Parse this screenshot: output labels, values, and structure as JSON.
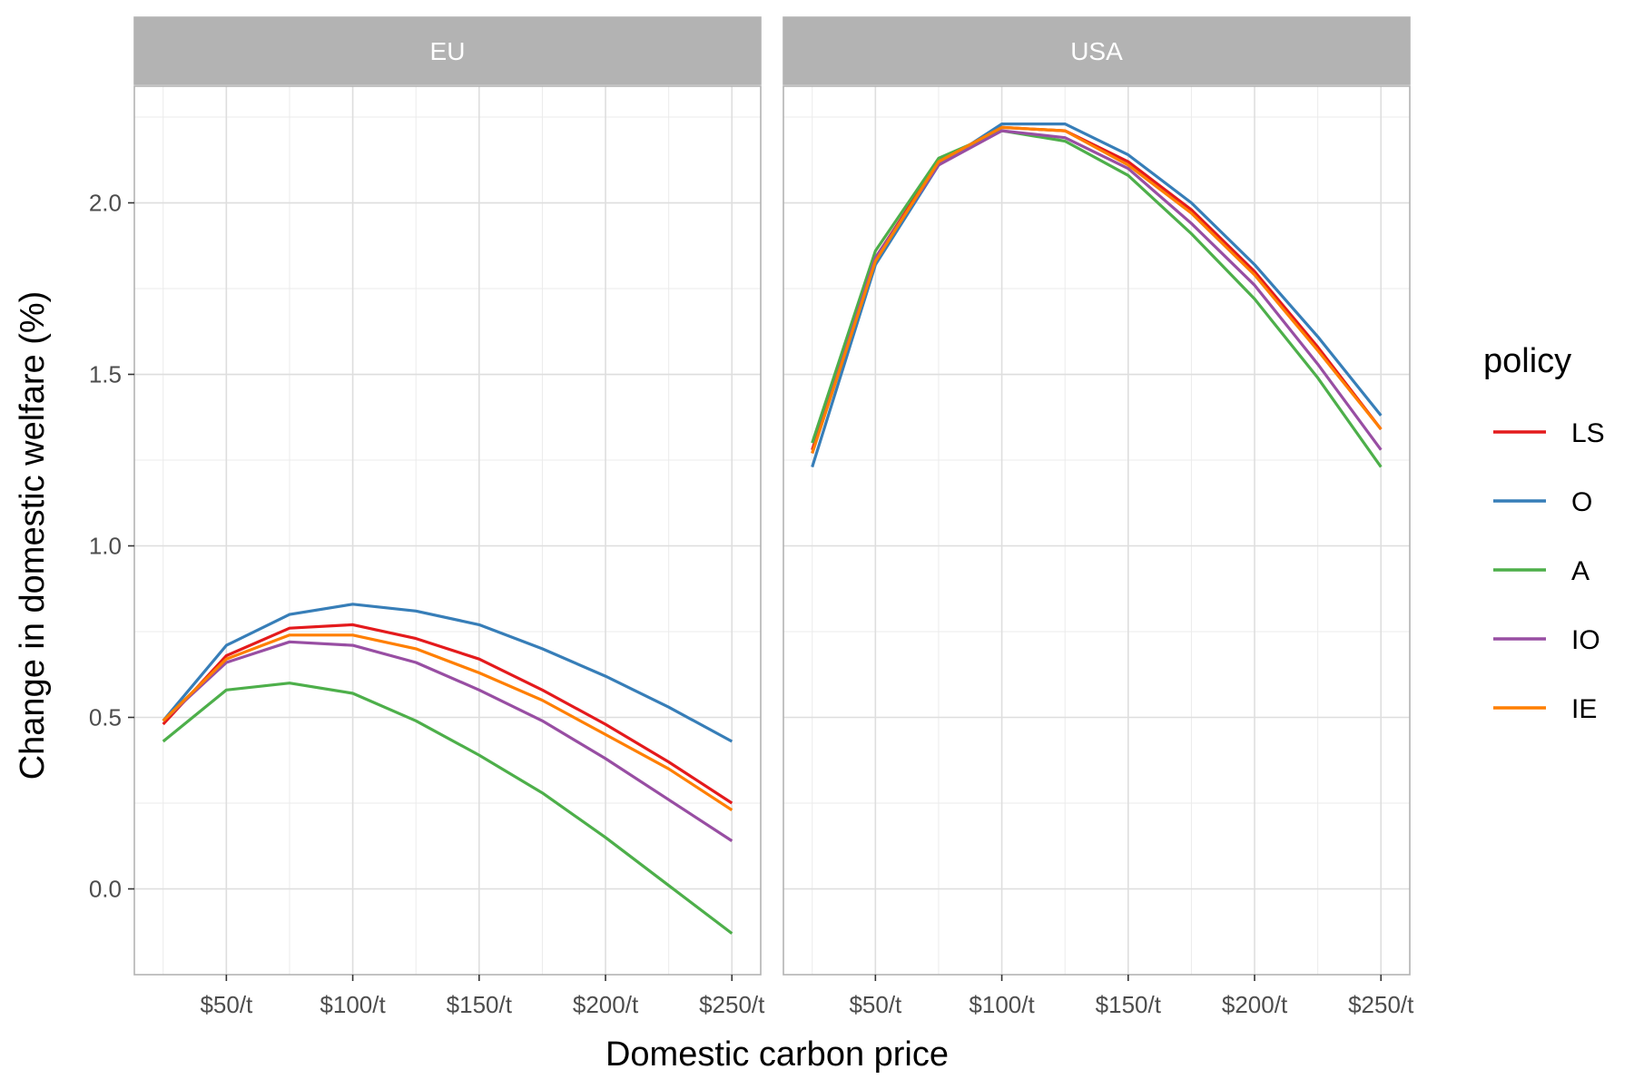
{
  "chart_data": {
    "type": "line",
    "xlabel": "Domestic carbon price",
    "ylabel": "Change in domestic welfare (%)",
    "x": [
      25,
      50,
      75,
      100,
      125,
      150,
      175,
      200,
      225,
      250
    ],
    "x_ticks": [
      {
        "value": 50,
        "label": "$50/t"
      },
      {
        "value": 100,
        "label": "$100/t"
      },
      {
        "value": 150,
        "label": "$150/t"
      },
      {
        "value": 200,
        "label": "$200/t"
      },
      {
        "value": 250,
        "label": "$250/t"
      }
    ],
    "y_ticks": [
      {
        "value": 0,
        "label": "0.0"
      },
      {
        "value": 0.5,
        "label": "0.5"
      },
      {
        "value": 1,
        "label": "1.0"
      },
      {
        "value": 1.5,
        "label": "1.5"
      },
      {
        "value": 2,
        "label": "2.0"
      }
    ],
    "xlim": [
      13.6,
      261.4
    ],
    "ylim": [
      -0.25,
      2.34
    ],
    "grid": true,
    "legend": {
      "title": "policy",
      "placement": "right",
      "entries": [
        {
          "name": "LS",
          "color": "#e41a1c"
        },
        {
          "name": "O",
          "color": "#377eb8"
        },
        {
          "name": "A",
          "color": "#4daf4a"
        },
        {
          "name": "IO",
          "color": "#984ea3"
        },
        {
          "name": "IE",
          "color": "#ff7f00"
        }
      ]
    },
    "panels": [
      {
        "label": "EU",
        "series": [
          {
            "name": "LS",
            "values": [
              0.48,
              0.68,
              0.76,
              0.77,
              0.73,
              0.67,
              0.58,
              0.48,
              0.37,
              0.25
            ]
          },
          {
            "name": "O",
            "values": [
              0.49,
              0.71,
              0.8,
              0.83,
              0.81,
              0.77,
              0.7,
              0.62,
              0.53,
              0.43
            ]
          },
          {
            "name": "A",
            "values": [
              0.43,
              0.58,
              0.6,
              0.57,
              0.49,
              0.39,
              0.28,
              0.15,
              0.01,
              -0.13
            ]
          },
          {
            "name": "IO",
            "values": [
              0.49,
              0.66,
              0.72,
              0.71,
              0.66,
              0.58,
              0.49,
              0.38,
              0.26,
              0.14
            ]
          },
          {
            "name": "IE",
            "values": [
              0.49,
              0.67,
              0.74,
              0.74,
              0.7,
              0.63,
              0.55,
              0.45,
              0.35,
              0.23
            ]
          }
        ]
      },
      {
        "label": "USA",
        "series": [
          {
            "name": "LS",
            "values": [
              1.28,
              1.84,
              2.12,
              2.22,
              2.21,
              2.12,
              1.98,
              1.8,
              1.58,
              1.34
            ]
          },
          {
            "name": "O",
            "values": [
              1.23,
              1.82,
              2.11,
              2.23,
              2.23,
              2.14,
              2.0,
              1.82,
              1.61,
              1.38
            ]
          },
          {
            "name": "A",
            "values": [
              1.3,
              1.86,
              2.13,
              2.21,
              2.18,
              2.08,
              1.91,
              1.72,
              1.49,
              1.23
            ]
          },
          {
            "name": "IO",
            "values": [
              1.27,
              1.84,
              2.11,
              2.21,
              2.19,
              2.1,
              1.94,
              1.76,
              1.53,
              1.28
            ]
          },
          {
            "name": "IE",
            "values": [
              1.27,
              1.83,
              2.12,
              2.22,
              2.21,
              2.11,
              1.97,
              1.79,
              1.57,
              1.34
            ]
          }
        ]
      }
    ]
  }
}
